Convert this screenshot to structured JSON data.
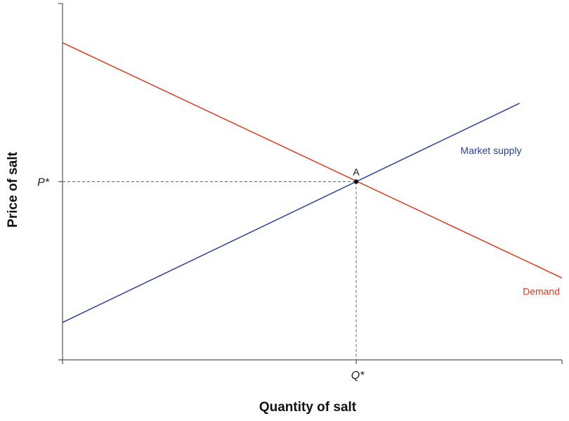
{
  "chart_data": {
    "type": "line",
    "xlabel": "Quantity of salt",
    "ylabel": "Price of salt",
    "xlim": [
      0,
      1
    ],
    "ylim": [
      0,
      1
    ],
    "x_ticks": [
      "Q*"
    ],
    "y_ticks": [
      "P*"
    ],
    "series": [
      {
        "name": "Demand",
        "color": "#e03a1e",
        "x": [
          0,
          1
        ],
        "y": [
          0.89,
          0.23
        ]
      },
      {
        "name": "Market supply",
        "color": "#2b3f9a",
        "x": [
          0,
          0.915
        ],
        "y": [
          0.105,
          0.72
        ]
      }
    ],
    "equilibrium": {
      "label": "A",
      "x": 0.588,
      "y": 0.5,
      "x_tick": "Q*",
      "y_tick": "P*"
    }
  }
}
